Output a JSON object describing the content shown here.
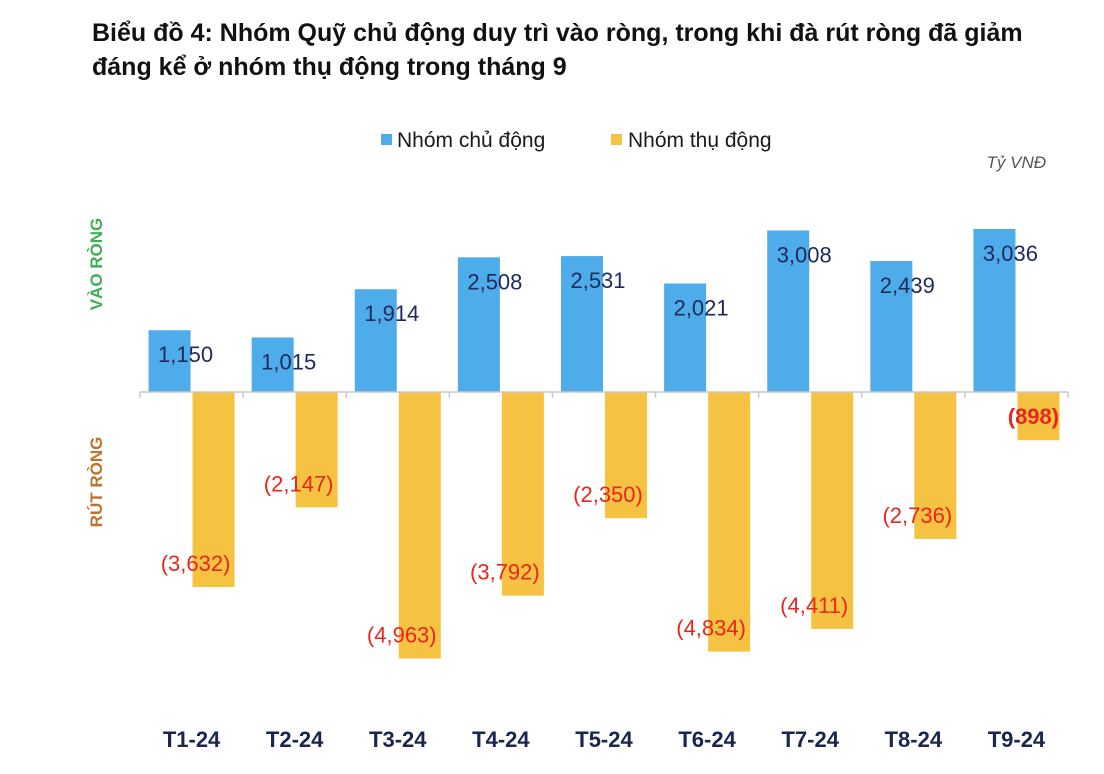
{
  "title": "Biểu đồ 4: Nhóm Quỹ chủ động duy trì vào ròng, trong khi đà rút ròng đã giảm đáng kể ở nhóm thụ động trong tháng 9",
  "chart_data": {
    "type": "bar",
    "unit": "Tỷ VNĐ",
    "positive_side_label": "VÀO RÒNG",
    "negative_side_label": "RÚT RÒNG",
    "categories": [
      "T1-24",
      "T2-24",
      "T3-24",
      "T4-24",
      "T5-24",
      "T6-24",
      "T7-24",
      "T8-24",
      "T9-24"
    ],
    "series": [
      {
        "name": "Nhóm chủ động",
        "color": "#4facea",
        "values": [
          1150,
          1015,
          1914,
          2508,
          2531,
          2021,
          3008,
          2439,
          3036
        ],
        "labels": [
          "1,150",
          "1,015",
          "1,914",
          "2,508",
          "2,531",
          "2,021",
          "3,008",
          "2,439",
          "3,036"
        ]
      },
      {
        "name": "Nhóm thụ động",
        "color": "#f5c242",
        "values": [
          -3632,
          -2147,
          -4963,
          -3792,
          -2350,
          -4834,
          -4411,
          -2736,
          -898
        ],
        "labels": [
          "(3,632)",
          "(2,147)",
          "(4,963)",
          "(3,792)",
          "(2,350)",
          "(4,834)",
          "(4,411)",
          "(2,736)",
          "(898)"
        ]
      }
    ],
    "legend": "top",
    "grid": false,
    "colors": {
      "positive_label": "#3fae54",
      "negative_label": "#c0722a",
      "negative_value": "#e8261d",
      "positive_value": "#1f2a5a"
    }
  }
}
